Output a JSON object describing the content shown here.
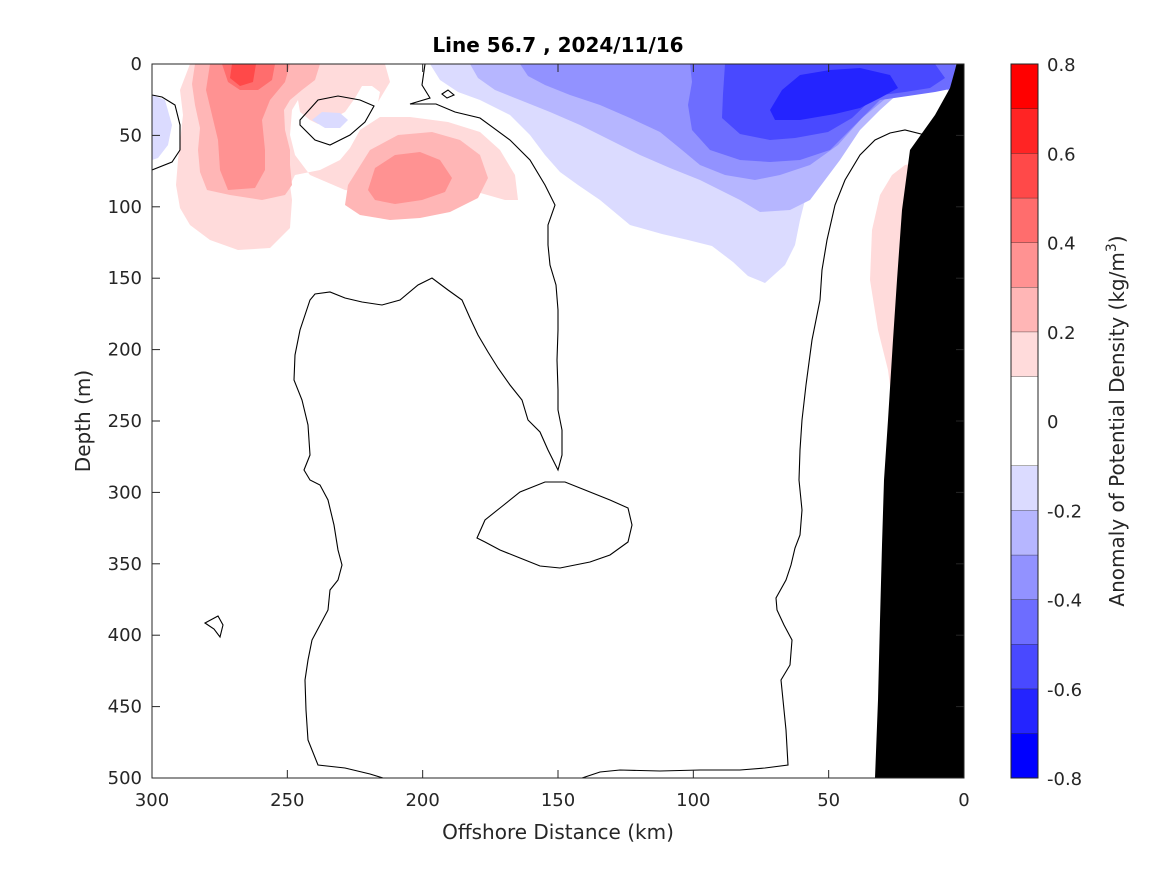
{
  "chart_data": {
    "type": "heatmap",
    "title": "Line 56.7 , 2024/11/16",
    "xlabel": "Offshore Distance (km)",
    "ylabel": "Depth (m)",
    "xlim": [
      300,
      0
    ],
    "ylim": [
      0,
      500
    ],
    "x_reversed": true,
    "y_reversed": true,
    "x_ticks": [
      300,
      250,
      200,
      150,
      100,
      50,
      0
    ],
    "x_tick_labels": [
      "300",
      "250",
      "200",
      "150",
      "100",
      "50",
      "0"
    ],
    "y_ticks": [
      0,
      50,
      100,
      150,
      200,
      250,
      300,
      350,
      400,
      450,
      500
    ],
    "y_tick_labels": [
      "0",
      "50",
      "100",
      "150",
      "200",
      "250",
      "300",
      "350",
      "400",
      "450",
      "500"
    ],
    "colorbar": {
      "label": "Anomaly of Potential Density (kg/m3)",
      "range": [
        -0.8,
        0.8
      ],
      "levels": [
        -0.8,
        -0.7,
        -0.6,
        -0.5,
        -0.4,
        -0.3,
        -0.2,
        -0.1,
        0.1,
        0.2,
        0.3,
        0.4,
        0.5,
        0.6,
        0.7,
        0.8
      ],
      "colors": [
        "#0000ff",
        "#2424ff",
        "#4949ff",
        "#6d6dff",
        "#9292ff",
        "#b6b6ff",
        "#dbdbff",
        "#ffffff",
        "#ffdbdb",
        "#ffb6b6",
        "#ff9292",
        "#ff6d6d",
        "#ff4949",
        "#ff2424",
        "#ff0000"
      ],
      "tick_values": [
        0.8,
        0.6,
        0.4,
        0.2,
        0,
        -0.2,
        -0.4,
        -0.6,
        -0.8
      ],
      "tick_labels": [
        "0.8",
        "0.6",
        "0.4",
        "0.2",
        "0",
        "-0.2",
        "-0.4",
        "-0.6",
        "-0.8"
      ]
    },
    "bathymetry_color": "#000000",
    "features": [
      {
        "sign": "positive",
        "peak_anomaly": 0.5,
        "x_center_km": 268,
        "depth_center_m": 10
      },
      {
        "sign": "positive",
        "peak_anomaly": 0.3,
        "x_center_km": 265,
        "depth_center_m": 60
      },
      {
        "sign": "positive",
        "peak_anomaly": 0.3,
        "x_center_km": 207,
        "depth_center_m": 80
      },
      {
        "sign": "positive",
        "peak_anomaly": 0.1,
        "x_center_km": 25,
        "depth_center_m": 150
      },
      {
        "sign": "negative",
        "peak_anomaly": -0.6,
        "x_center_km": 50,
        "depth_center_m": 25
      },
      {
        "sign": "negative",
        "peak_anomaly": -0.1,
        "x_center_km": 298,
        "depth_center_m": 40
      }
    ]
  }
}
